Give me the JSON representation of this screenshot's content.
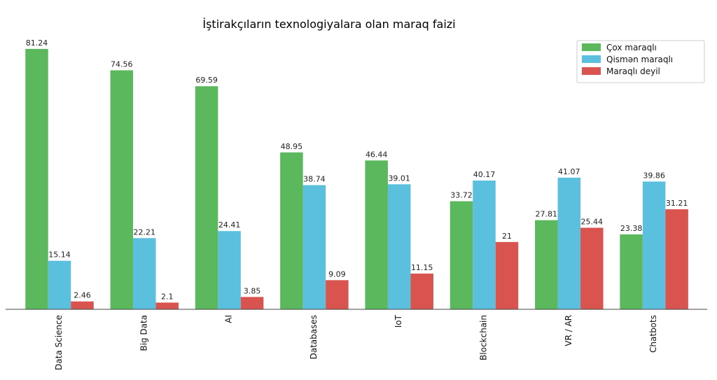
{
  "chart_data": {
    "type": "bar",
    "title": "İştirakçıların texnologiyalara olan maraq faizi",
    "xlabel": "",
    "ylabel": "",
    "ylim": [
      0,
      85
    ],
    "grid": false,
    "legend_position": "top-right",
    "categories": [
      "Data Science",
      "Big Data",
      "AI",
      "Databases",
      "IoT",
      "Blockchain",
      "VR / AR",
      "Chatbots"
    ],
    "series": [
      {
        "name": "Çox maraqlı",
        "color": "#5cb85c",
        "values": [
          81.24,
          74.56,
          69.59,
          48.95,
          46.44,
          33.72,
          27.81,
          23.38
        ]
      },
      {
        "name": "Qismən maraqlı",
        "color": "#5bc0de",
        "values": [
          15.14,
          22.21,
          24.41,
          38.74,
          39.01,
          40.17,
          41.07,
          39.86
        ]
      },
      {
        "name": "Maraqlı deyil",
        "color": "#d9534f",
        "values": [
          2.46,
          2.1,
          3.85,
          9.09,
          11.15,
          21.0,
          25.44,
          31.21
        ]
      }
    ]
  }
}
